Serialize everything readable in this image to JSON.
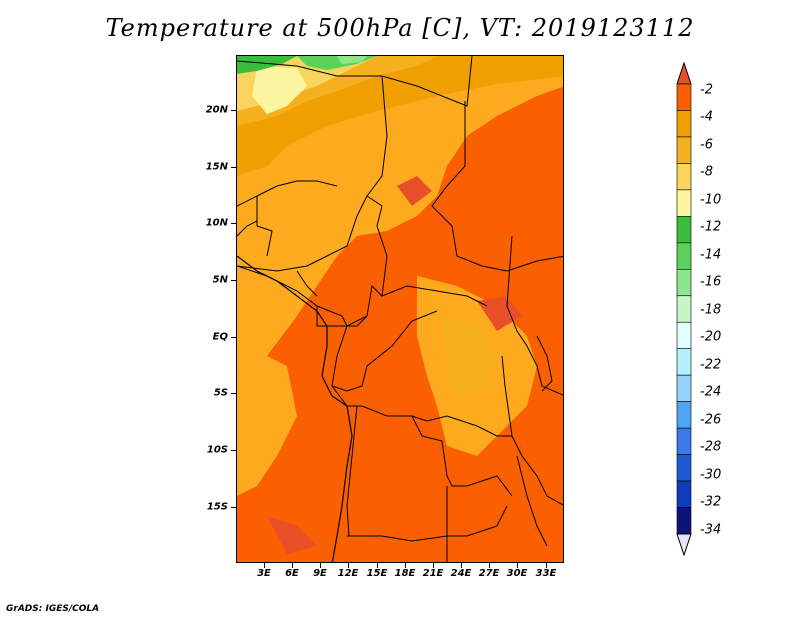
{
  "title": "Temperature at 500hPa [C], VT: 2019123112",
  "credit": "GrADS: IGES/COLA",
  "lat_labels": [
    "20N",
    "15N",
    "10N",
    "5N",
    "EQ",
    "5S",
    "10S",
    "15S"
  ],
  "lat_values": [
    20,
    15,
    10,
    5,
    0,
    -5,
    -10,
    -15
  ],
  "lon_labels": [
    "3E",
    "6E",
    "9E",
    "12E",
    "15E",
    "18E",
    "21E",
    "24E",
    "27E",
    "30E",
    "33E"
  ],
  "lon_values": [
    3,
    6,
    9,
    12,
    15,
    18,
    21,
    24,
    27,
    30,
    33
  ],
  "colorbar": {
    "labels": [
      "-2",
      "-4",
      "-6",
      "-8",
      "-10",
      "-12",
      "-14",
      "-16",
      "-18",
      "-20",
      "-22",
      "-24",
      "-26",
      "-28",
      "-30",
      "-32",
      "-34"
    ],
    "colors": [
      "#e8502a",
      "#fa6002",
      "#f0a000",
      "#f5b020",
      "#fbd45c",
      "#fdf5a0",
      "#3cbe3c",
      "#5ad25a",
      "#8ce68c",
      "#c8f5c8",
      "#e1ffff",
      "#b4f0fa",
      "#96d2fa",
      "#50a5f5",
      "#3c78e6",
      "#1e5ad2",
      "#0f3cbe",
      "#0c1478",
      "#e6e6f6"
    ]
  }
}
